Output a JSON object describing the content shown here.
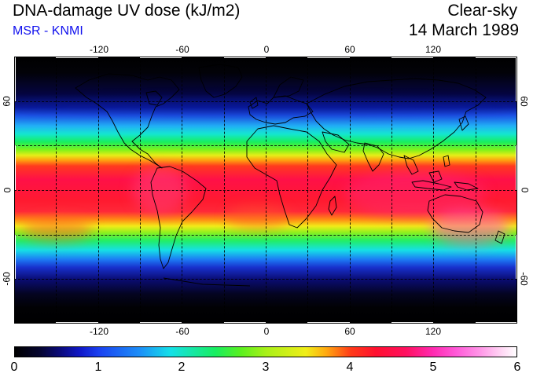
{
  "header": {
    "title": "DNA-damage UV dose (kJ/m2)",
    "source": "MSR - KNMI",
    "condition": "Clear-sky",
    "date": "14 March 1989"
  },
  "map": {
    "lon_ticks": [
      "-120",
      "-60",
      "0",
      "60",
      "120"
    ],
    "lat_ticks": [
      "60",
      "0",
      "-60"
    ],
    "colors": {
      "land_outline": "#000000",
      "gridline": "#000000"
    }
  },
  "colorbar": {
    "ticks": [
      "0",
      "1",
      "2",
      "3",
      "4",
      "5",
      "6"
    ],
    "range": [
      0,
      6
    ]
  }
}
